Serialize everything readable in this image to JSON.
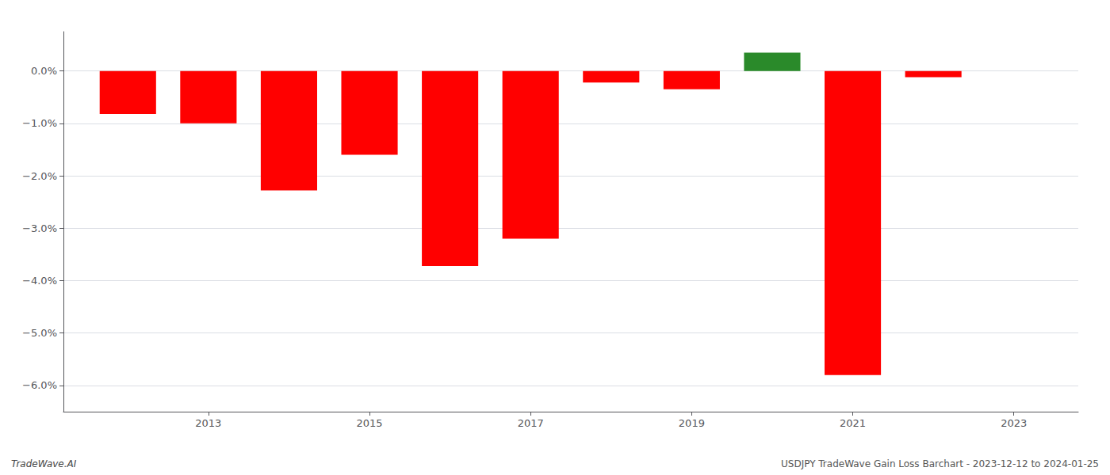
{
  "chart_data": {
    "type": "bar",
    "x": [
      2012,
      2013,
      2014,
      2015,
      2016,
      2017,
      2018,
      2019,
      2020,
      2021,
      2022
    ],
    "values": [
      -0.82,
      -1.0,
      -2.28,
      -1.6,
      -3.72,
      -3.2,
      -0.22,
      -0.35,
      0.35,
      -5.8,
      -0.12
    ],
    "colors": [
      "#ff0000",
      "#ff0000",
      "#ff0000",
      "#ff0000",
      "#ff0000",
      "#ff0000",
      "#ff0000",
      "#ff0000",
      "#2a8a2a",
      "#ff0000",
      "#ff0000"
    ],
    "xlim": [
      2011.2,
      2023.8
    ],
    "xticks": [
      2013,
      2015,
      2017,
      2019,
      2021,
      2023
    ],
    "ylim": [
      -6.5,
      0.75
    ],
    "yticks": [
      {
        "value": 0.0,
        "label": "0.0%"
      },
      {
        "value": -1.0,
        "label": "−1.0%"
      },
      {
        "value": -2.0,
        "label": "−2.0%"
      },
      {
        "value": -3.0,
        "label": "−3.0%"
      },
      {
        "value": -4.0,
        "label": "−4.0%"
      },
      {
        "value": -5.0,
        "label": "−5.0%"
      },
      {
        "value": -6.0,
        "label": "−6.0%"
      }
    ],
    "grid": true,
    "annotations": [
      "TradeWave.AI",
      "USDJPY TradeWave Gain Loss Barchart - 2023-12-12 to 2024-01-25"
    ]
  }
}
